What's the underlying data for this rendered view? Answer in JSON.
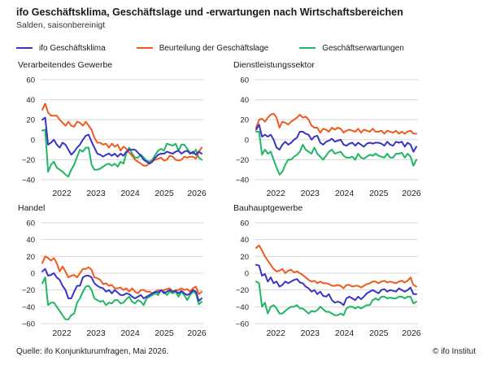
{
  "title": "ifo Geschäftsklima, Geschäftslage und -erwartungen nach Wirtschaftsbereichen",
  "subtitle": "Salden, saisonbereinigt",
  "source": "Quelle: ifo Konjunkturumfragen, Mai 2026.",
  "copyright": "© ifo Institut",
  "colors": {
    "klima": "#3a34c4",
    "lage": "#f05a1f",
    "erwartungen": "#1fb664",
    "grid": "#d9d9d9"
  },
  "legend": [
    {
      "key": "klima",
      "label": "ifo Geschäftsklima"
    },
    {
      "key": "lage",
      "label": "Beurteilung der Geschäftslage"
    },
    {
      "key": "erwartungen",
      "label": "Geschäftserwartungen"
    }
  ],
  "chart_data": [
    {
      "type": "line",
      "title": "Verarbeitendes Gewerbe",
      "x_start": "2021-08",
      "x_ticks": [
        "2022",
        "2023",
        "2024",
        "2025",
        "2026"
      ],
      "y_ticks": [
        60,
        40,
        20,
        0,
        -20,
        -40
      ],
      "ylim": [
        -40,
        60
      ],
      "grid": true,
      "series": [
        {
          "key": "klima",
          "name": "ifo Geschäftsklima",
          "values": [
            20,
            22,
            -5,
            -3,
            0,
            -5,
            -8,
            -3,
            -5,
            -10,
            -15,
            -12,
            -8,
            -5,
            0,
            4,
            5,
            -2,
            -8,
            -14,
            -15,
            -17,
            -15,
            -14,
            -16,
            -14,
            -17,
            -14,
            -16,
            -12,
            -10,
            -10,
            -10,
            -13,
            -16,
            -20,
            -22,
            -24,
            -22,
            -18,
            -15,
            -14,
            -14,
            -12,
            -13,
            -14,
            -12,
            -11,
            -14,
            -12,
            -11,
            -14,
            -12,
            -15,
            -12,
            -14
          ]
        },
        {
          "key": "lage",
          "name": "Beurteilung der Geschäftslage",
          "values": [
            30,
            36,
            27,
            24,
            24,
            24,
            20,
            17,
            14,
            18,
            14,
            13,
            18,
            17,
            14,
            18,
            14,
            10,
            2,
            -3,
            -3,
            -5,
            -4,
            -8,
            -4,
            -7,
            -5,
            -11,
            -7,
            -9,
            -13,
            -16,
            -20,
            -22,
            -24,
            -26,
            -26,
            -23,
            -21,
            -20,
            -19,
            -18,
            -21,
            -20,
            -16,
            -17,
            -20,
            -21,
            -20,
            -17,
            -18,
            -17,
            -17,
            -19,
            -12,
            -8
          ]
        },
        {
          "key": "erwartungen",
          "name": "Geschäftserwartungen",
          "values": [
            9,
            10,
            -32,
            -25,
            -22,
            -28,
            -30,
            -32,
            -35,
            -37,
            -30,
            -25,
            -17,
            -10,
            -12,
            -8,
            -8,
            -25,
            -30,
            -30,
            -29,
            -27,
            -25,
            -24,
            -26,
            -24,
            -27,
            -22,
            -24,
            -14,
            -8,
            -14,
            -18,
            -18,
            -15,
            -18,
            -21,
            -22,
            -20,
            -15,
            -11,
            -9,
            -11,
            -4,
            -5,
            -6,
            -4,
            -11,
            -5,
            -5,
            -9,
            -13,
            -14,
            -10,
            -18,
            -20
          ]
        }
      ]
    },
    {
      "type": "line",
      "title": "Dienstleistungssektor",
      "x_start": "2021-08",
      "x_ticks": [
        "2022",
        "2023",
        "2024",
        "2025",
        "2026"
      ],
      "y_ticks": [
        60,
        40,
        20,
        0,
        -20,
        -40
      ],
      "ylim": [
        -40,
        60
      ],
      "grid": true,
      "series": [
        {
          "key": "klima",
          "name": "ifo Geschäftsklima",
          "values": [
            10,
            15,
            3,
            5,
            3,
            5,
            0,
            -8,
            -10,
            -5,
            -2,
            -5,
            -3,
            0,
            2,
            8,
            8,
            6,
            5,
            0,
            3,
            4,
            -3,
            -5,
            -2,
            -1,
            1,
            -2,
            -1,
            0,
            -5,
            -6,
            -4,
            -3,
            -6,
            -3,
            -5,
            -7,
            -4,
            -3,
            -4,
            -3,
            -3,
            -4,
            -6,
            -2,
            -5,
            -6,
            -2,
            -3,
            -2,
            -7,
            -3,
            -5,
            -12,
            -7
          ]
        },
        {
          "key": "lage",
          "name": "Beurteilung der Geschäftslage",
          "values": [
            12,
            20,
            21,
            18,
            22,
            25,
            26,
            22,
            12,
            18,
            17,
            15,
            18,
            20,
            22,
            25,
            22,
            23,
            20,
            14,
            12,
            12,
            7,
            11,
            10,
            8,
            12,
            10,
            12,
            11,
            7,
            9,
            10,
            9,
            8,
            11,
            7,
            10,
            9,
            8,
            11,
            8,
            8,
            9,
            6,
            9,
            8,
            7,
            9,
            6,
            8,
            6,
            8,
            9,
            6,
            6
          ]
        },
        {
          "key": "erwartungen",
          "name": "Geschäftserwartungen",
          "values": [
            8,
            8,
            -15,
            -10,
            -14,
            -12,
            -20,
            -28,
            -35,
            -32,
            -25,
            -20,
            -20,
            -17,
            -15,
            -12,
            -5,
            -10,
            -12,
            -14,
            -8,
            -14,
            -17,
            -20,
            -16,
            -12,
            -10,
            -14,
            -13,
            -12,
            -16,
            -18,
            -18,
            -17,
            -20,
            -14,
            -18,
            -19,
            -17,
            -15,
            -16,
            -14,
            -16,
            -17,
            -18,
            -14,
            -18,
            -18,
            -14,
            -14,
            -13,
            -18,
            -14,
            -17,
            -26,
            -20
          ]
        }
      ]
    },
    {
      "type": "line",
      "title": "Handel",
      "x_start": "2021-08",
      "x_ticks": [
        "2022",
        "2023",
        "2024",
        "2025",
        "2026"
      ],
      "y_ticks": [
        60,
        40,
        20,
        0,
        -20,
        -40,
        -60
      ],
      "ylim": [
        -60,
        60
      ],
      "grid": true,
      "series": [
        {
          "key": "klima",
          "name": "ifo Geschäftsklima",
          "values": [
            2,
            5,
            -3,
            -2,
            0,
            -5,
            -8,
            -15,
            -20,
            -30,
            -30,
            -22,
            -15,
            -15,
            -5,
            -3,
            -3,
            -5,
            -12,
            -15,
            -17,
            -18,
            -22,
            -20,
            -24,
            -20,
            -23,
            -26,
            -26,
            -24,
            -25,
            -28,
            -30,
            -28,
            -26,
            -30,
            -28,
            -26,
            -24,
            -22,
            -23,
            -20,
            -24,
            -22,
            -20,
            -22,
            -21,
            -24,
            -21,
            -24,
            -26,
            -24,
            -20,
            -22,
            -33,
            -30
          ]
        },
        {
          "key": "lage",
          "name": "Beurteilung der Geschäftslage",
          "values": [
            12,
            20,
            18,
            15,
            18,
            12,
            2,
            8,
            2,
            -5,
            -3,
            -2,
            -5,
            0,
            5,
            5,
            7,
            4,
            -5,
            -6,
            -8,
            -13,
            -12,
            -15,
            -14,
            -18,
            -18,
            -17,
            -20,
            -18,
            -22,
            -18,
            -22,
            -24,
            -20,
            -20,
            -22,
            -22,
            -24,
            -22,
            -20,
            -21,
            -20,
            -19,
            -18,
            -22,
            -20,
            -20,
            -18,
            -20,
            -19,
            -22,
            -18,
            -16,
            -25,
            -22
          ]
        },
        {
          "key": "erwartungen",
          "name": "Geschäftserwartungen",
          "values": [
            -12,
            -5,
            -38,
            -35,
            -35,
            -40,
            -45,
            -50,
            -55,
            -55,
            -50,
            -48,
            -35,
            -30,
            -22,
            -16,
            -15,
            -20,
            -30,
            -32,
            -34,
            -33,
            -38,
            -35,
            -36,
            -32,
            -32,
            -36,
            -35,
            -31,
            -28,
            -34,
            -36,
            -32,
            -34,
            -38,
            -30,
            -28,
            -26,
            -24,
            -26,
            -20,
            -22,
            -26,
            -22,
            -24,
            -22,
            -28,
            -22,
            -26,
            -32,
            -26,
            -22,
            -24,
            -37,
            -34
          ]
        }
      ]
    },
    {
      "type": "line",
      "title": "Bauhauptgewerbe",
      "x_start": "2021-08",
      "x_ticks": [
        "2022",
        "2023",
        "2024",
        "2025",
        "2026"
      ],
      "y_ticks": [
        60,
        40,
        20,
        0,
        -20,
        -40,
        -60
      ],
      "ylim": [
        -60,
        60
      ],
      "grid": true,
      "series": [
        {
          "key": "klima",
          "name": "ifo Geschäftsklima",
          "values": [
            10,
            9,
            -3,
            -1,
            -10,
            -5,
            -12,
            -10,
            -16,
            -14,
            -10,
            -12,
            -10,
            -8,
            -7,
            -11,
            -12,
            -16,
            -18,
            -22,
            -20,
            -25,
            -22,
            -27,
            -28,
            -25,
            -32,
            -35,
            -34,
            -35,
            -38,
            -30,
            -28,
            -30,
            -32,
            -28,
            -31,
            -28,
            -24,
            -22,
            -20,
            -22,
            -24,
            -20,
            -19,
            -22,
            -20,
            -21,
            -22,
            -18,
            -20,
            -22,
            -20,
            -17,
            -25,
            -25
          ]
        },
        {
          "key": "lage",
          "name": "Beurteilung der Geschäftslage",
          "values": [
            30,
            33,
            27,
            20,
            15,
            10,
            5,
            2,
            3,
            5,
            0,
            3,
            4,
            1,
            2,
            0,
            -2,
            -5,
            -8,
            -10,
            -9,
            -12,
            -10,
            -12,
            -12,
            -13,
            -15,
            -15,
            -14,
            -15,
            -18,
            -14,
            -14,
            -16,
            -15,
            -15,
            -17,
            -15,
            -13,
            -12,
            -10,
            -10,
            -12,
            -10,
            -9,
            -11,
            -10,
            -11,
            -12,
            -10,
            -9,
            -11,
            -9,
            -5,
            -14,
            -16
          ]
        },
        {
          "key": "erwartungen",
          "name": "Geschäftserwartungen",
          "values": [
            -10,
            -12,
            -40,
            -35,
            -48,
            -40,
            -38,
            -42,
            -48,
            -48,
            -45,
            -42,
            -40,
            -40,
            -38,
            -42,
            -42,
            -45,
            -48,
            -45,
            -46,
            -44,
            -40,
            -43,
            -46,
            -46,
            -48,
            -50,
            -50,
            -48,
            -50,
            -42,
            -40,
            -40,
            -42,
            -40,
            -42,
            -40,
            -38,
            -38,
            -32,
            -30,
            -32,
            -28,
            -28,
            -30,
            -29,
            -30,
            -30,
            -28,
            -28,
            -30,
            -28,
            -28,
            -36,
            -34
          ]
        }
      ]
    }
  ]
}
